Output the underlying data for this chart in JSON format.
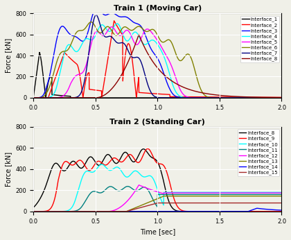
{
  "title1": "Train 1 (Moving Car)",
  "title2": "Train 2 (Standing Car)",
  "xlabel": "Time [sec]",
  "ylabel": "Force [kN]",
  "xlim": [
    0.0,
    2.0
  ],
  "ylim": [
    0,
    800
  ],
  "yticks": [
    0,
    200,
    400,
    600,
    800
  ],
  "xticks": [
    0.0,
    0.5,
    1.0,
    1.5,
    2.0
  ],
  "legend1": [
    "Interface_1",
    "Interface_2",
    "Interface_3",
    "Interface_4",
    "Interface_5",
    "Interface_6",
    "Interface_7",
    "Interface_8"
  ],
  "legend2": [
    "Interface_8",
    "Interface_9",
    "Interface_10",
    "Interface_11",
    "Interface_12",
    "Interface_13",
    "Interface_14",
    "Interface_15"
  ],
  "colors1": [
    "black",
    "red",
    "blue",
    "cyan",
    "magenta",
    "olive",
    "navy",
    "darkred"
  ],
  "colors2": [
    "black",
    "red",
    "cyan",
    "teal",
    "magenta",
    "olive",
    "blue",
    "brown"
  ],
  "background": "#f0f0e8",
  "grid_color": "white",
  "linewidth": 1.0
}
